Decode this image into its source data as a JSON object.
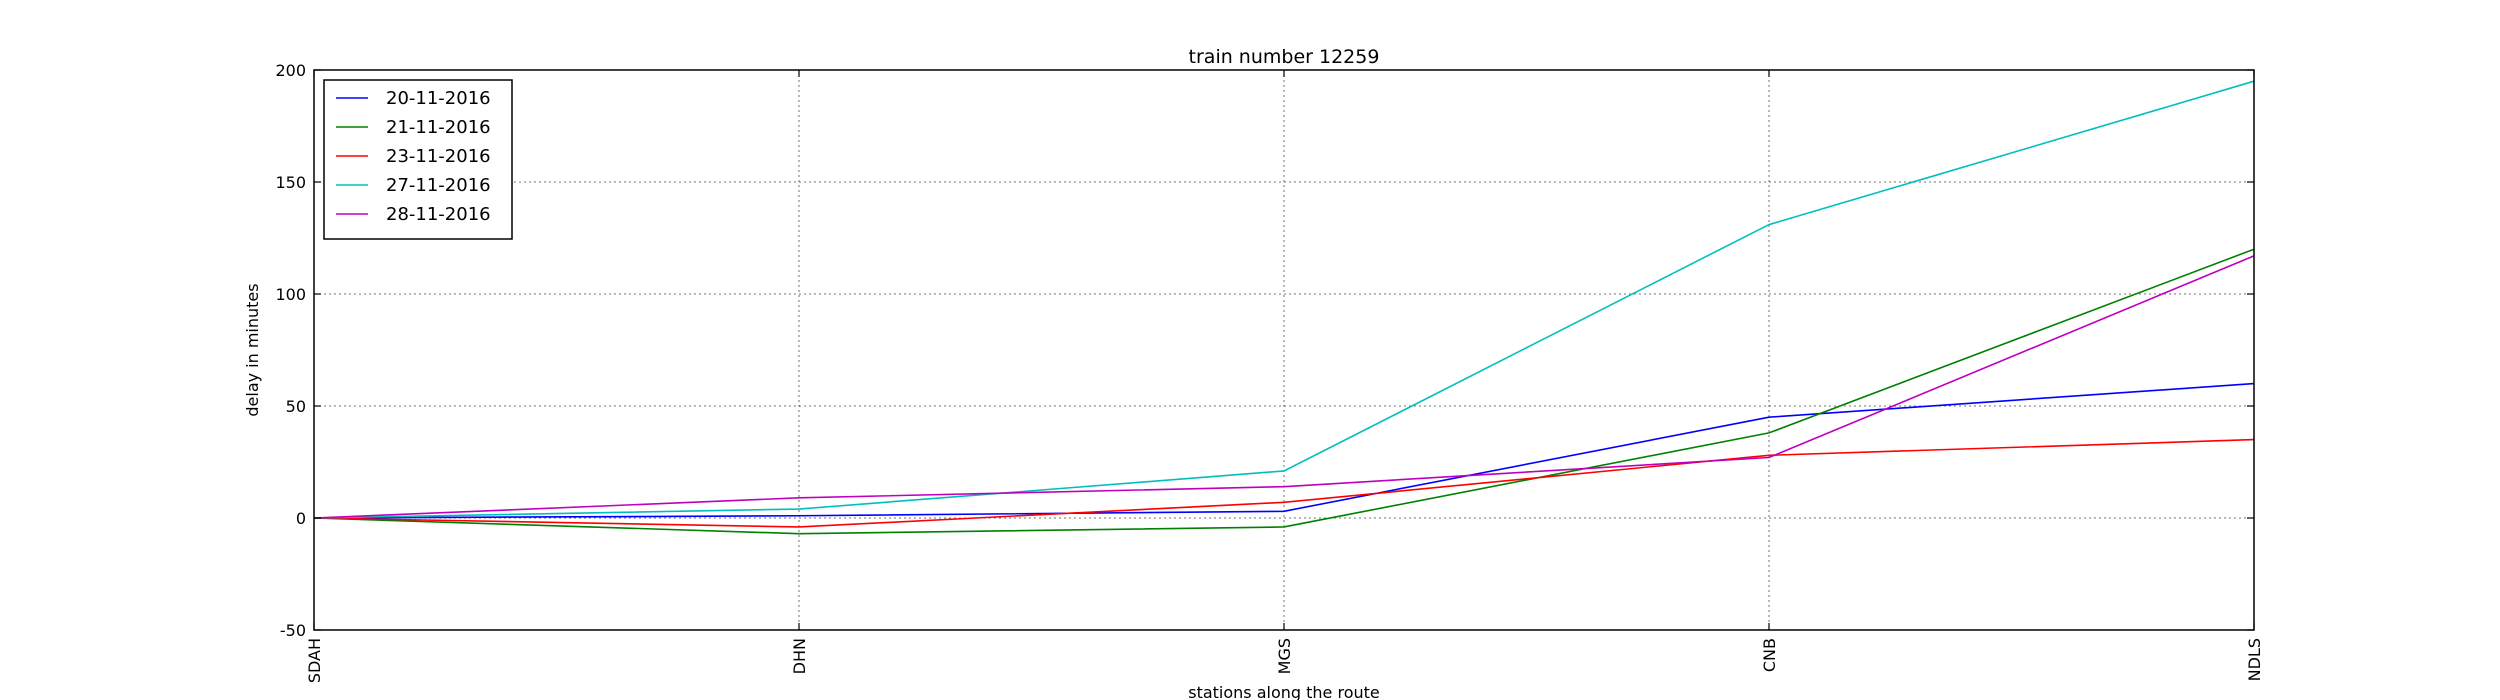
{
  "chart_data": {
    "type": "line",
    "title": "train number 12259",
    "xlabel": "stations along the route",
    "ylabel": "delay in minutes",
    "categories": [
      "SDAH",
      "DHN",
      "MGS",
      "CNB",
      "NDLS"
    ],
    "ylim": [
      -50,
      200
    ],
    "yticks": [
      -50,
      0,
      50,
      100,
      150,
      200
    ],
    "grid": true,
    "legend_position": "top-left",
    "series": [
      {
        "name": "20-11-2016",
        "color": "#0000ff",
        "values": [
          0,
          1,
          3,
          45,
          60
        ]
      },
      {
        "name": "21-11-2016",
        "color": "#008000",
        "values": [
          0,
          -7,
          -4,
          38,
          120
        ]
      },
      {
        "name": "23-11-2016",
        "color": "#ff0000",
        "values": [
          0,
          -4,
          7,
          28,
          35
        ]
      },
      {
        "name": "27-11-2016",
        "color": "#00bfbf",
        "values": [
          0,
          4,
          21,
          131,
          195
        ]
      },
      {
        "name": "28-11-2016",
        "color": "#bf00bf",
        "values": [
          0,
          9,
          14,
          27,
          117
        ]
      }
    ]
  }
}
